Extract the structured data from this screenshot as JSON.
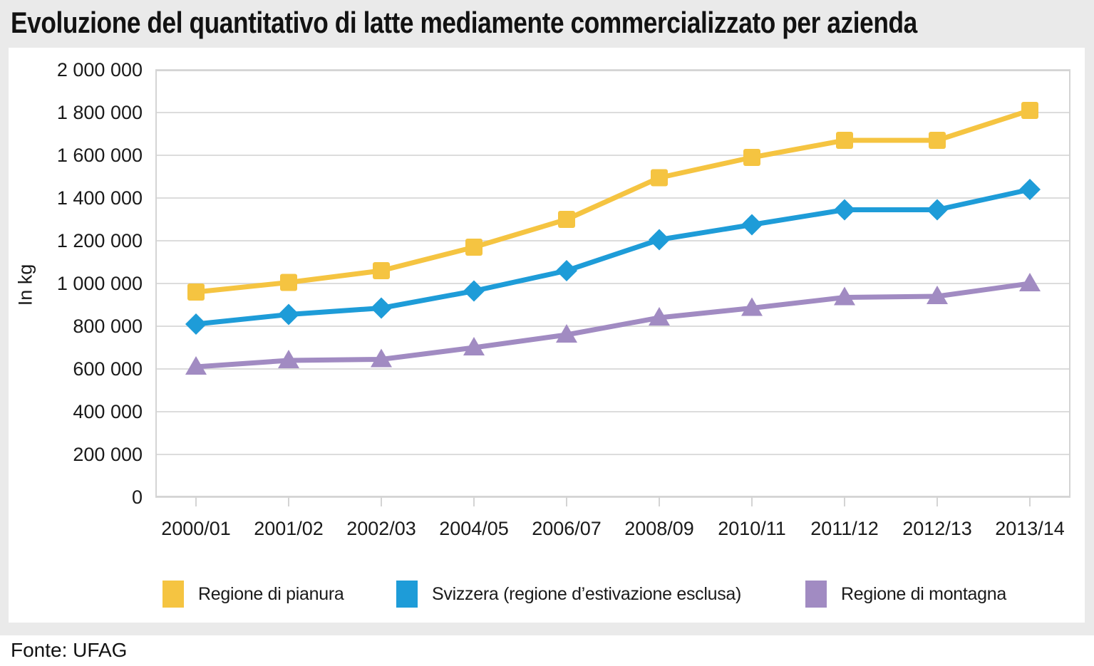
{
  "title": "Evoluzione del quantitativo di latte mediamente commercializzato per azienda",
  "source": "Fonte: UFAG",
  "colors": {
    "pianura": "#F5C441",
    "svizzera": "#1E9CD8",
    "montagna": "#A18BC2",
    "gridline": "#dcdcdc",
    "frame": "#d4d4d4",
    "card_background": "#eaeaea",
    "text": "#1a1a1a"
  },
  "chart_data": {
    "type": "line",
    "title": "Evoluzione del quantitativo di latte mediamente commercializzato per azienda",
    "xlabel": "",
    "ylabel": "In kg",
    "ylim": [
      0,
      2000000
    ],
    "ytick_interval": 200000,
    "ytick_labels": [
      "2 000 000",
      "1 800 000",
      "1 600 000",
      "1 400 000",
      "1 200 000",
      "1 000 000",
      "800 000",
      "600 000",
      "400 000",
      "200 000",
      "0"
    ],
    "categories": [
      "2000/01",
      "2001/02",
      "2002/03",
      "2004/05",
      "2006/07",
      "2008/09",
      "2010/11",
      "2011/12",
      "2012/13",
      "2013/14"
    ],
    "grid": true,
    "legend_position": "bottom",
    "series": [
      {
        "name": "Regione di pianura",
        "color": "#F5C441",
        "marker": "square",
        "values": [
          960000,
          1005000,
          1060000,
          1170000,
          1300000,
          1495000,
          1590000,
          1670000,
          1670000,
          1810000
        ]
      },
      {
        "name": "Svizzera (regione d’estivazione esclusa)",
        "color": "#1E9CD8",
        "marker": "diamond",
        "values": [
          810000,
          855000,
          885000,
          965000,
          1060000,
          1205000,
          1275000,
          1345000,
          1345000,
          1440000
        ]
      },
      {
        "name": "Regione di montagna",
        "color": "#A18BC2",
        "marker": "triangle",
        "values": [
          610000,
          640000,
          645000,
          700000,
          760000,
          840000,
          885000,
          935000,
          940000,
          1000000
        ]
      }
    ]
  }
}
